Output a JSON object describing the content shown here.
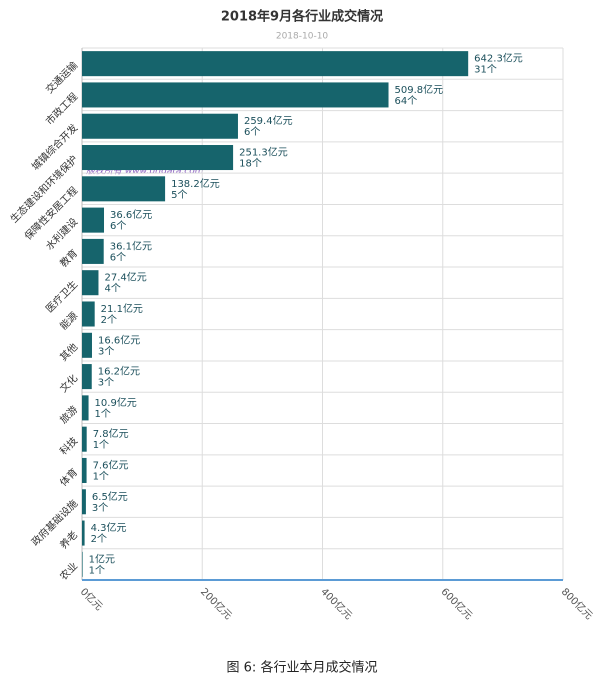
{
  "chart_data": {
    "type": "hbar",
    "title": "2018年9月各行业成交情况",
    "subtitle": "2018-10-10",
    "categories": [
      "交通运输",
      "市政工程",
      "城镇综合开发",
      "生态建设和环境保护",
      "保障性安居工程",
      "水利建设",
      "教育",
      "医疗卫生",
      "能源",
      "其他",
      "文化",
      "旅游",
      "科技",
      "体育",
      "政府基础设施",
      "养老",
      "农业"
    ],
    "values": [
      642.3,
      509.8,
      259.4,
      251.3,
      138.2,
      36.6,
      36.1,
      27.4,
      21.1,
      16.6,
      16.2,
      10.9,
      7.8,
      7.6,
      6.5,
      4.3,
      1
    ],
    "value_labels": [
      "642.3亿元",
      "509.8亿元",
      "259.4亿元",
      "251.3亿元",
      "138.2亿元",
      "36.6亿元",
      "36.1亿元",
      "27.4亿元",
      "21.1亿元",
      "16.6亿元",
      "16.2亿元",
      "10.9亿元",
      "7.8亿元",
      "7.6亿元",
      "6.5亿元",
      "4.3亿元",
      "1亿元"
    ],
    "counts": [
      31,
      64,
      6,
      18,
      5,
      6,
      6,
      4,
      2,
      3,
      3,
      1,
      1,
      1,
      3,
      2,
      1
    ],
    "count_labels": [
      "31个",
      "64个",
      "6个",
      "18个",
      "5个",
      "6个",
      "6个",
      "4个",
      "2个",
      "3个",
      "3个",
      "1个",
      "1个",
      "1个",
      "3个",
      "2个",
      "1个"
    ],
    "color": "#16646c",
    "xlim": [
      0,
      800
    ],
    "xticks": [
      {
        "value": 0,
        "label": "0亿元"
      },
      {
        "value": 200,
        "label": "200亿元"
      },
      {
        "value": 400,
        "label": "400亿元"
      },
      {
        "value": 600,
        "label": "600亿元"
      },
      {
        "value": 800,
        "label": "800亿元"
      }
    ],
    "grid": true,
    "watermark": "版权所有 www.bridata.com",
    "caption": "图 6:  各行业本月成交情况"
  }
}
